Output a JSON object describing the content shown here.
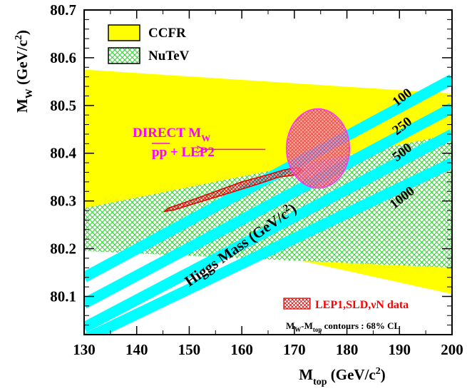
{
  "chart_data": {
    "type": "area",
    "title": "",
    "xlabel": {
      "base": "M",
      "sub": "top",
      "unit": " (GeV/c",
      "sup": "2",
      "close": ")"
    },
    "ylabel": {
      "base": "M",
      "sub": "W",
      "unit": " (GeV/c",
      "sup": "2",
      "close": ")"
    },
    "xlim": [
      130,
      200
    ],
    "ylim": [
      80.02,
      80.7
    ],
    "x_ticks": [
      "130",
      "140",
      "150",
      "160",
      "170",
      "180",
      "190",
      "200"
    ],
    "y_ticks": [
      "80.1",
      "80.2",
      "80.3",
      "80.4",
      "80.5",
      "80.6",
      "80.7"
    ],
    "grid": false,
    "legend_position": "top-left",
    "colors": {
      "ccfr": "#ffff00",
      "nutev_hatch": "#33cc33",
      "higgs_band": "#00ffff",
      "lep_contour": "#e00000",
      "direct_contour": "#ff33ff",
      "direct_fill": "#ff88cc",
      "annotation_text": "#ff00ff",
      "lep_text": "#ff0000"
    },
    "legend": [
      {
        "label": "CCFR",
        "style": "solid-yellow"
      },
      {
        "label": "NuTeV",
        "style": "green-hatch"
      }
    ],
    "bands": [
      {
        "name": "CCFR",
        "polygon": [
          [
            130,
            80.575
          ],
          [
            200,
            80.525
          ],
          [
            200,
            80.105
          ],
          [
            130,
            80.275
          ]
        ]
      },
      {
        "name": "NuTeV",
        "polygon": [
          [
            130,
            80.285
          ],
          [
            200,
            80.44
          ],
          [
            200,
            80.16
          ],
          [
            130,
            80.195
          ]
        ]
      }
    ],
    "higgs_bands": [
      {
        "label": "100",
        "center": [
          [
            130,
            80.14
          ],
          [
            200,
            80.555
          ]
        ],
        "label_at": [
          191,
          80.51
        ]
      },
      {
        "label": "250",
        "center": [
          [
            130,
            80.085
          ],
          [
            200,
            80.495
          ]
        ],
        "label_at": [
          191,
          80.45
        ]
      },
      {
        "label": "500",
        "center": [
          [
            130,
            80.035
          ],
          [
            200,
            80.44
          ]
        ],
        "label_at": [
          191,
          80.395
        ]
      },
      {
        "label": "1000",
        "center": [
          [
            130,
            80.01
          ],
          [
            200,
            80.38
          ]
        ],
        "label_at": [
          191,
          80.3
        ]
      }
    ],
    "higgs_axis_label": {
      "base": "Higgs Mass (GeV/c",
      "sup": "2",
      "close": ")",
      "at": [
        150,
        80.12
      ],
      "angle": -35
    },
    "lep_contour": {
      "label": "LEP1,SLD,νN data",
      "outline": [
        [
          145.3,
          80.278
        ],
        [
          146,
          80.285
        ],
        [
          150,
          80.3
        ],
        [
          155,
          80.32
        ],
        [
          160,
          80.34
        ],
        [
          165,
          80.355
        ],
        [
          168,
          80.365
        ],
        [
          170.5,
          80.37
        ],
        [
          171.5,
          80.365
        ],
        [
          170.5,
          80.355
        ],
        [
          167,
          80.35
        ],
        [
          163,
          80.335
        ],
        [
          158,
          80.318
        ],
        [
          152,
          80.298
        ],
        [
          147,
          80.281
        ],
        [
          145.3,
          80.278
        ]
      ]
    },
    "direct_contour": {
      "label_line1": {
        "base": "DIRECT M",
        "sub": "W"
      },
      "label_line2": "pp + LEP2",
      "center": [
        174.5,
        80.41
      ],
      "rx": 6.0,
      "ry": 0.083,
      "arrow_from": [
        164.5,
        80.408
      ],
      "arrow_to": [
        152.5,
        80.408
      ]
    },
    "footnote": {
      "base1": "M",
      "sub1": "W",
      "dash": "-M",
      "sub2": "top",
      "rest": " contours : 68% CL"
    }
  }
}
